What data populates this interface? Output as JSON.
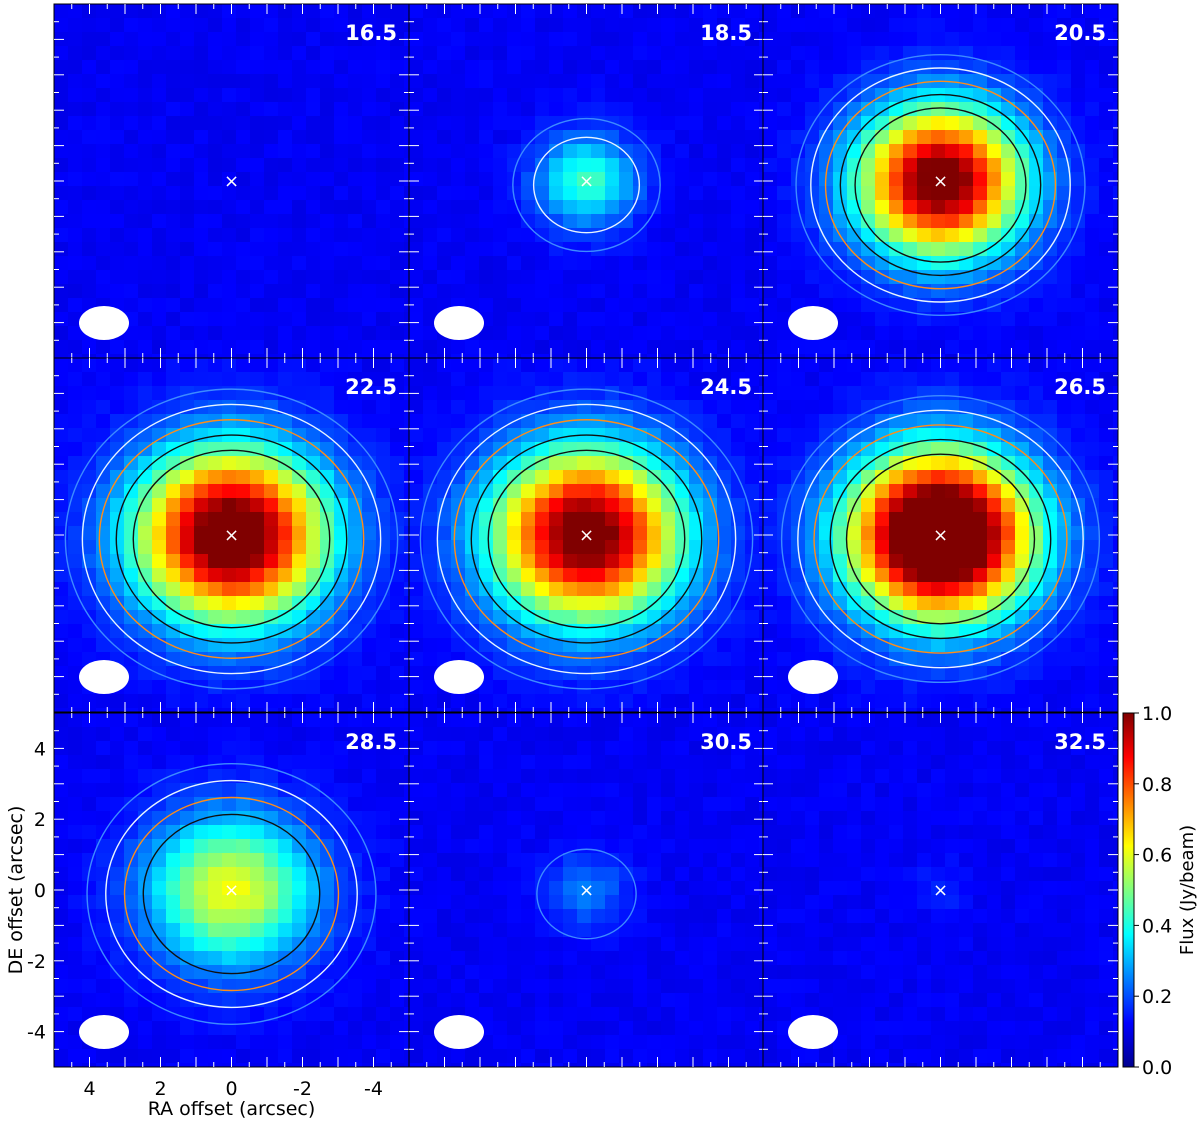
{
  "chart_data": {
    "type": "heatmap",
    "description_type": "channel map grid (3x3)",
    "panels": [
      {
        "label": "16.5",
        "peak": 0.0,
        "contours": 0,
        "extent": 0.0
      },
      {
        "label": "18.5",
        "peak": 0.32,
        "contours": 2,
        "extent": 0.6
      },
      {
        "label": "20.5",
        "peak": 0.95,
        "contours": 5,
        "extent": 1.0
      },
      {
        "label": "22.5",
        "peak": 1.0,
        "contours": 5,
        "extent": 1.15
      },
      {
        "label": "24.5",
        "peak": 0.95,
        "contours": 5,
        "extent": 1.15
      },
      {
        "label": "26.5",
        "peak": 1.2,
        "contours": 5,
        "extent": 1.1
      },
      {
        "label": "28.5",
        "peak": 0.5,
        "contours": 4,
        "extent": 1.0
      },
      {
        "label": "30.5",
        "peak": 0.13,
        "contours": 1,
        "extent": 0.5
      },
      {
        "label": "32.5",
        "peak": 0.04,
        "contours": 0,
        "extent": 0.0
      }
    ],
    "xlabel": "RA offset (arcsec)",
    "ylabel": "DE offset (arcsec)",
    "xlim": [
      5,
      -5
    ],
    "ylim": [
      -5,
      5
    ],
    "xticks": [
      "4",
      "2",
      "0",
      "-2",
      "-4"
    ],
    "yticks": [
      "4",
      "2",
      "0",
      "-2",
      "-4"
    ],
    "colorbar": {
      "label": "Flux (Jy/beam)",
      "range": [
        0.0,
        1.0
      ],
      "ticks": [
        "0.0",
        "0.2",
        "0.4",
        "0.6",
        "0.8",
        "1.0"
      ],
      "colormap": "jet"
    },
    "contour_colors": [
      "#3d8bff",
      "#e8f4ff",
      "#ff8c1a",
      "#101010",
      "#101010"
    ],
    "marker": "×",
    "beam": "white ellipse",
    "grid": false
  }
}
